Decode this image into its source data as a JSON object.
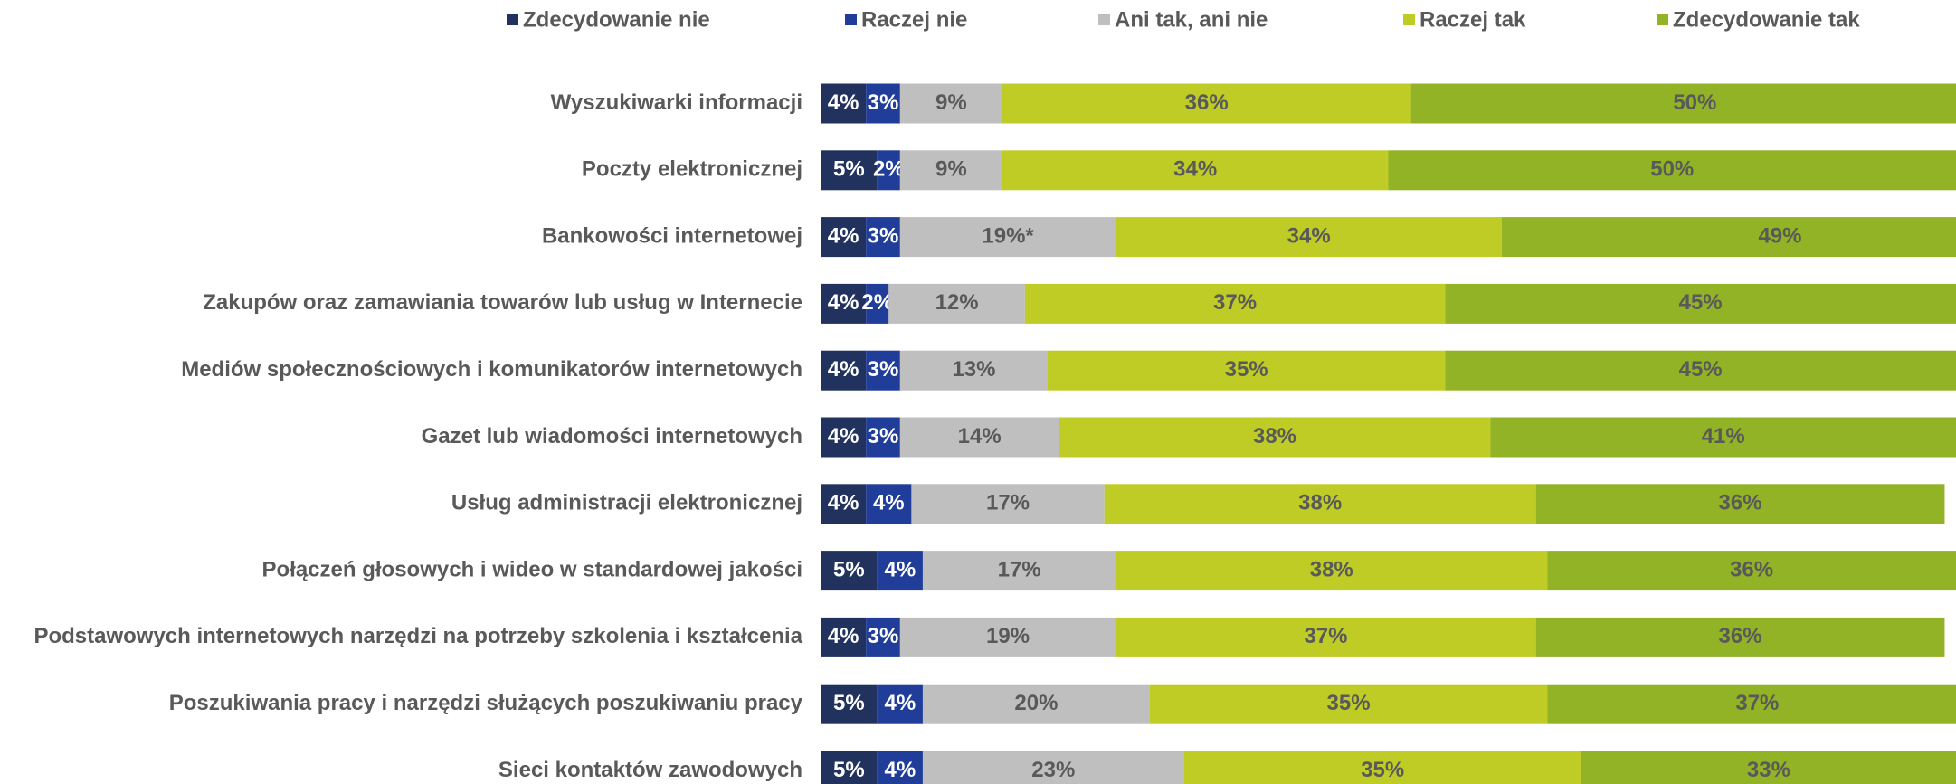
{
  "chart_data": {
    "type": "stacked-bar-horizontal",
    "categories": [
      "Wyszukiwarki informacji",
      "Poczty elektronicznej",
      "Bankowości internetowej",
      "Zakupów oraz zamawiania towarów lub usług w Internecie",
      "Mediów społecznościowych i komunikatorów internetowych",
      "Gazet lub wiadomości internetowych",
      "Usług administracji elektronicznej",
      "Połączeń głosowych i wideo w standardowej jakości",
      "Podstawowych internetowych narzędzi na potrzeby szkolenia i kształcenia",
      "Poszukiwania pracy i narzędzi służących poszukiwaniu pracy",
      "Sieci kontaktów zawodowych"
    ],
    "series": [
      {
        "name": "Zdecydowanie nie",
        "color": "#22325e",
        "values": [
          4,
          5,
          4,
          4,
          4,
          4,
          4,
          5,
          4,
          5,
          5
        ],
        "value_labels": [
          "4%",
          "5%",
          "4%",
          "4%",
          "4%",
          "4%",
          "4%",
          "5%",
          "4%",
          "5%",
          "5%"
        ]
      },
      {
        "name": "Raczej nie",
        "color": "#1f3d99",
        "values": [
          3,
          2,
          3,
          2,
          3,
          3,
          4,
          4,
          3,
          4,
          4
        ],
        "value_labels": [
          "3%",
          "2%",
          "3%",
          "2%",
          "3%",
          "3%",
          "4%",
          "4%",
          "3%",
          "4%",
          "4%"
        ]
      },
      {
        "name": "Ani tak, ani nie",
        "color": "#bfbfbf",
        "values": [
          9,
          9,
          19,
          12,
          13,
          14,
          17,
          17,
          19,
          20,
          23
        ],
        "value_labels": [
          "9%",
          "9%",
          "19%*",
          "12%",
          "13%",
          "14%",
          "17%",
          "17%",
          "19%",
          "20%",
          "23%"
        ]
      },
      {
        "name": "Raczej tak",
        "color": "#bfcc25",
        "values": [
          36,
          34,
          34,
          37,
          35,
          38,
          38,
          38,
          37,
          35,
          35
        ],
        "value_labels": [
          "36%",
          "34%",
          "34%",
          "37%",
          "35%",
          "38%",
          "38%",
          "38%",
          "37%",
          "35%",
          "35%"
        ]
      },
      {
        "name": "Zdecydowanie tak",
        "color": "#92b326",
        "values": [
          50,
          50,
          49,
          45,
          45,
          41,
          36,
          36,
          36,
          37,
          33
        ],
        "value_labels": [
          "50%",
          "50%",
          "49%",
          "45%",
          "45%",
          "41%",
          "36%",
          "36%",
          "36%",
          "37%",
          "33%"
        ]
      }
    ]
  }
}
